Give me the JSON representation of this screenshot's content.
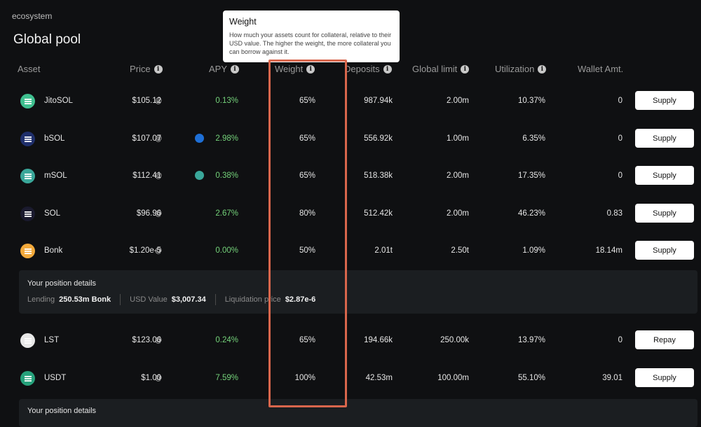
{
  "breadcrumb": "ecosystem",
  "page_title": "Global pool",
  "columns": {
    "asset": "Asset",
    "price": "Price",
    "apy": "APY",
    "weight": "Weight",
    "deposits": "Deposits",
    "global_limit": "Global limit",
    "utilization": "Utilization",
    "wallet": "Wallet Amt."
  },
  "tooltip": {
    "title": "Weight",
    "body": "How much your assets count for collateral, relative to their USD value. The higher the weight, the more collateral you can borrow against it."
  },
  "rows": [
    {
      "asset": "JitoSOL",
      "price": "$105.12",
      "apy": "0.13%",
      "weight": "65%",
      "deposits": "987.94k",
      "global_limit": "2.00m",
      "utilization": "10.37%",
      "wallet": "0",
      "action": "Supply",
      "color": "#3fbf8f",
      "icon": "jitosol-icon"
    },
    {
      "asset": "bSOL",
      "price": "$107.07",
      "apy": "2.98%",
      "weight": "65%",
      "deposits": "556.92k",
      "global_limit": "1.00m",
      "utilization": "6.35%",
      "wallet": "0",
      "action": "Supply",
      "color": "#1f2f6b",
      "icon": "bsol-icon"
    },
    {
      "asset": "mSOL",
      "price": "$112.41",
      "apy": "0.38%",
      "weight": "65%",
      "deposits": "518.38k",
      "global_limit": "2.00m",
      "utilization": "17.35%",
      "wallet": "0",
      "action": "Supply",
      "color": "#3aa79a",
      "icon": "msol-icon"
    },
    {
      "asset": "SOL",
      "price": "$96.96",
      "apy": "2.67%",
      "weight": "80%",
      "deposits": "512.42k",
      "global_limit": "2.00m",
      "utilization": "46.23%",
      "wallet": "0.83",
      "action": "Supply",
      "color": "#1a1a2e",
      "icon": "sol-icon"
    },
    {
      "asset": "Bonk",
      "price": "$1.20e-5",
      "apy": "0.00%",
      "weight": "50%",
      "deposits": "2.01t",
      "global_limit": "2.50t",
      "utilization": "1.09%",
      "wallet": "18.14m",
      "action": "Supply",
      "color": "#f2a93b",
      "icon": "bonk-icon"
    },
    {
      "asset": "LST",
      "price": "$123.06",
      "apy": "0.24%",
      "weight": "65%",
      "deposits": "194.66k",
      "global_limit": "250.00k",
      "utilization": "13.97%",
      "wallet": "0",
      "action": "Repay",
      "color": "#e8e8e8",
      "icon": "lst-icon"
    },
    {
      "asset": "USDT",
      "price": "$1.00",
      "apy": "7.59%",
      "weight": "100%",
      "deposits": "42.53m",
      "global_limit": "100.00m",
      "utilization": "55.10%",
      "wallet": "39.01",
      "action": "Supply",
      "color": "#26a17b",
      "icon": "usdt-icon"
    }
  ],
  "position_1": {
    "title": "Your position details",
    "lending_label": "Lending",
    "lending_value": "250.53m Bonk",
    "usd_label": "USD Value",
    "usd_value": "$3,007.34",
    "liq_label": "Liquidation price",
    "liq_value": "$2.87e-6"
  },
  "position_2": {
    "title": "Your position details"
  },
  "icons": {
    "info": "info-icon",
    "oracle": "oracle-icon"
  }
}
